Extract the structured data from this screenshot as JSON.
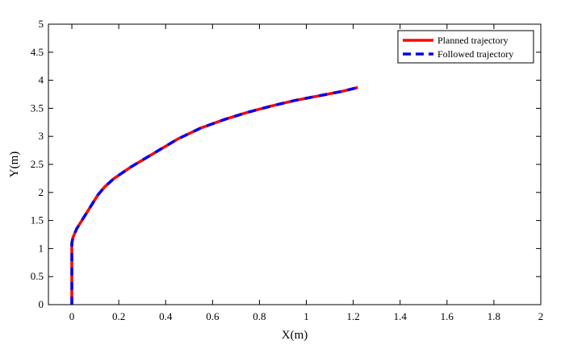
{
  "chart_data": {
    "type": "line",
    "title": "",
    "xlabel": "X(m)",
    "ylabel": "Y(m)",
    "xlim": [
      -0.1,
      2
    ],
    "ylim": [
      0,
      5
    ],
    "xticks": [
      0,
      0.2,
      0.4,
      0.6,
      0.8,
      1,
      1.2,
      1.4,
      1.6,
      1.8,
      2
    ],
    "xtick_labels": [
      "0",
      "0.2",
      "0.4",
      "0.6",
      "0.8",
      "1",
      "1.2",
      "1.4",
      "1.6",
      "1.8",
      "2"
    ],
    "yticks": [
      0,
      0.5,
      1,
      1.5,
      2,
      2.5,
      3,
      3.5,
      4,
      4.5,
      5
    ],
    "ytick_labels": [
      "0",
      "0.5",
      "1",
      "1.5",
      "2",
      "2.5",
      "3",
      "3.5",
      "4",
      "4.5",
      "5"
    ],
    "grid": false,
    "legend_position": "top-right",
    "series": [
      {
        "name": "Planned trajectory",
        "color": "#ff0000",
        "style": "solid",
        "x": [
          0,
          0,
          0,
          0.005,
          0.02,
          0.05,
          0.08,
          0.11,
          0.14,
          0.18,
          0.25,
          0.35,
          0.45,
          0.55,
          0.65,
          0.75,
          0.85,
          0.95,
          1.05,
          1.15,
          1.22
        ],
        "y": [
          0,
          0.6,
          1.1,
          1.2,
          1.35,
          1.55,
          1.75,
          1.95,
          2.1,
          2.25,
          2.45,
          2.7,
          2.95,
          3.15,
          3.3,
          3.43,
          3.54,
          3.64,
          3.72,
          3.8,
          3.87
        ]
      },
      {
        "name": "Followed trajectory",
        "color": "#0000ff",
        "style": "dashed",
        "x": [
          0,
          0,
          0,
          0.005,
          0.02,
          0.05,
          0.08,
          0.11,
          0.14,
          0.18,
          0.25,
          0.35,
          0.45,
          0.55,
          0.65,
          0.75,
          0.85,
          0.95,
          1.05,
          1.15,
          1.22
        ],
        "y": [
          0,
          0.6,
          1.1,
          1.2,
          1.35,
          1.55,
          1.75,
          1.95,
          2.1,
          2.25,
          2.45,
          2.7,
          2.95,
          3.15,
          3.3,
          3.43,
          3.54,
          3.64,
          3.72,
          3.8,
          3.87
        ]
      }
    ]
  }
}
